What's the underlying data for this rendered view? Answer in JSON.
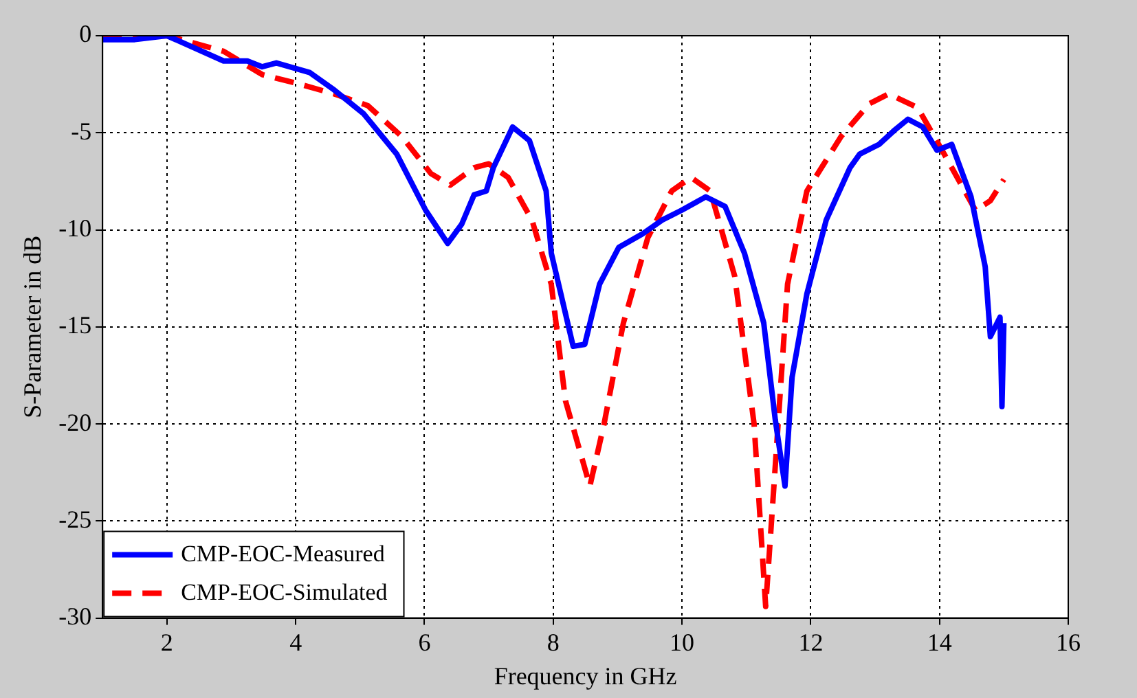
{
  "chart_data": {
    "type": "line",
    "xlabel": "Frequency in GHz",
    "ylabel": "S-Parameter in dB",
    "xlim": [
      1,
      16
    ],
    "xticks": [
      2,
      4,
      6,
      8,
      10,
      12,
      14,
      16
    ],
    "ylim": [
      -30,
      0
    ],
    "yticks": [
      -30,
      -25,
      -20,
      -15,
      -10,
      -5,
      0
    ],
    "grid": true,
    "legend": "bottom left",
    "marker": "none",
    "series": [
      {
        "name": "CMP-EOC-Measured",
        "color": "#0000ff",
        "line_style": "solid",
        "x": [
          1,
          1.5,
          2,
          2.88,
          3.25,
          3.48,
          3.7,
          4.22,
          4.6,
          5.05,
          5.57,
          6.02,
          6.36,
          6.58,
          6.77,
          6.96,
          7.07,
          7.37,
          7.63,
          7.89,
          7.97,
          8.31,
          8.49,
          8.72,
          9.02,
          9.39,
          9.69,
          9.99,
          10.37,
          10.67,
          10.97,
          11.27,
          11.45,
          11.6,
          11.71,
          11.94,
          12.24,
          12.61,
          12.76,
          13.06,
          13.29,
          13.51,
          13.74,
          13.96,
          14.19,
          14.49,
          14.71,
          14.79,
          14.94,
          14.97,
          15
        ],
        "values": [
          -0.2,
          -0.2,
          0,
          -1.3,
          -1.3,
          -1.6,
          -1.4,
          -1.9,
          -2.8,
          -4,
          -6.1,
          -9,
          -10.7,
          -9.7,
          -8.2,
          -8,
          -6.8,
          -4.7,
          -5.4,
          -8,
          -11.2,
          -16,
          -15.9,
          -12.8,
          -10.9,
          -10.2,
          -9.5,
          -9,
          -8.3,
          -8.8,
          -11.2,
          -14.8,
          -19.8,
          -23.2,
          -17.6,
          -13.3,
          -9.5,
          -6.8,
          -6.1,
          -5.6,
          -4.9,
          -4.3,
          -4.7,
          -5.9,
          -5.6,
          -8.3,
          -11.9,
          -15.5,
          -14.5,
          -19.1,
          -14.8
        ]
      },
      {
        "name": "CMP-EOC-Simulated",
        "color": "#ff0000",
        "line_style": "dashed",
        "x": [
          1,
          2,
          2.88,
          3.48,
          4.07,
          4.6,
          5.12,
          5.65,
          6.1,
          6.4,
          6.77,
          7,
          7.3,
          7.67,
          7.97,
          8.19,
          8.57,
          8.79,
          9.09,
          9.47,
          9.84,
          10.14,
          10.44,
          10.82,
          11.12,
          11.3,
          11.42,
          11.64,
          11.94,
          12.47,
          12.91,
          13.21,
          13.66,
          14.04,
          14.56,
          14.79,
          15
        ],
        "values": [
          -0.1,
          0,
          -0.8,
          -2,
          -2.5,
          -3,
          -3.6,
          -5.2,
          -7.1,
          -7.7,
          -6.8,
          -6.6,
          -7.3,
          -9.5,
          -12.8,
          -18.8,
          -23.2,
          -20,
          -14.8,
          -10.4,
          -8,
          -7.3,
          -8,
          -12.4,
          -20,
          -29.4,
          -23.6,
          -12.8,
          -8,
          -5.2,
          -3.5,
          -3,
          -3.7,
          -5.9,
          -9,
          -8.5,
          -7.4
        ]
      }
    ]
  }
}
